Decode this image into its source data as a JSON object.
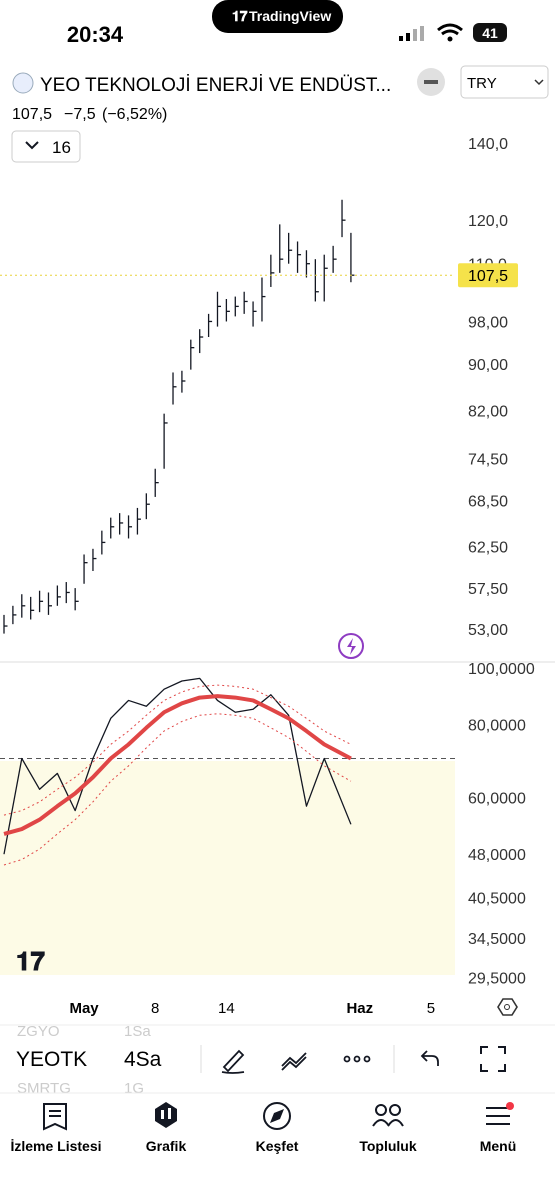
{
  "status_bar": {
    "time": "20:34",
    "app": "TradingView",
    "battery": "41"
  },
  "header": {
    "symbol_name": "YEO TEKNOLOJİ ENERJİ VE ENDÜST...",
    "currency": "TRY",
    "price": "107,5",
    "change": "−7,5",
    "change_pct": "(−6,52%)",
    "interval": "16"
  },
  "chart_data": [
    {
      "type": "ohlc",
      "yscale": "log",
      "color": "#131722",
      "ylim": [
        49.8,
        152.6
      ],
      "xlim": [
        -0.45,
        50.7
      ],
      "yticks": [
        {
          "value": 140,
          "label": "140,0"
        },
        {
          "value": 120,
          "label": "120,0"
        },
        {
          "value": 110,
          "label": "110,0"
        },
        {
          "value": 98,
          "label": "98,00"
        },
        {
          "value": 90,
          "label": "90,00"
        },
        {
          "value": 82,
          "label": "82,00"
        },
        {
          "value": 74.5,
          "label": "74,50"
        },
        {
          "value": 68.5,
          "label": "68,50"
        },
        {
          "value": 62.5,
          "label": "62,50"
        },
        {
          "value": 57.5,
          "label": "57,50"
        },
        {
          "value": 53,
          "label": "53,00"
        }
      ],
      "last_price": {
        "value": 107.5,
        "label": "107,5"
      },
      "xticks": [
        {
          "value": 9,
          "label": "May"
        },
        {
          "value": 17,
          "label": "8"
        },
        {
          "value": 25,
          "label": "14"
        },
        {
          "value": 40,
          "label": "Haz"
        },
        {
          "value": 48,
          "label": "5"
        }
      ],
      "high": [
        54.5,
        55.5,
        56.8,
        56.5,
        57.2,
        57,
        57.8,
        58.2,
        57.5,
        61.5,
        62.2,
        64.5,
        66.2,
        66.8,
        66.5,
        67.5,
        69.5,
        73,
        81.5,
        88.5,
        88.8,
        94.5,
        96.5,
        99.5,
        104,
        102.5,
        103,
        104,
        102,
        107,
        112,
        119,
        117,
        115,
        113,
        111,
        112,
        114,
        125,
        117
      ],
      "low": [
        52.5,
        53.5,
        54.2,
        54,
        54.8,
        54.5,
        55.5,
        55.8,
        55,
        58,
        59.5,
        61.5,
        63.5,
        64,
        63.5,
        64,
        66,
        69,
        73,
        83,
        85,
        89,
        92,
        95,
        97,
        98,
        99,
        99.5,
        97,
        98,
        105,
        108,
        110,
        108,
        107,
        102,
        102,
        108,
        116,
        106
      ],
      "close": [
        53.3,
        54.5,
        55.5,
        55,
        56,
        55.5,
        56.5,
        57,
        56,
        60.5,
        61,
        63,
        65,
        65.5,
        65,
        66,
        68,
        71,
        80,
        86,
        87,
        93,
        95,
        98,
        101,
        100,
        101,
        102,
        100,
        103,
        108,
        111,
        113,
        112,
        110,
        104,
        109,
        111,
        120,
        107.5
      ]
    },
    {
      "type": "line",
      "yscale": "log",
      "ylim": [
        28.1,
        102.4
      ],
      "xlim": [
        -0.45,
        50.7
      ],
      "yticks": [
        {
          "value": 100,
          "label": "100,0000"
        },
        {
          "value": 80,
          "label": "80,0000"
        },
        {
          "value": 60,
          "label": "60,0000"
        },
        {
          "value": 48,
          "label": "48,0000"
        },
        {
          "value": 40.5,
          "label": "40,5000"
        },
        {
          "value": 34.5,
          "label": "34,5000"
        },
        {
          "value": 29.5,
          "label": "29,5000"
        }
      ],
      "levels": [
        70,
        30
      ],
      "x": [
        0,
        2,
        4,
        6,
        8,
        10,
        12,
        14,
        16,
        18,
        20,
        22,
        24,
        26,
        28,
        30,
        32,
        34,
        36,
        39
      ],
      "series": [
        {
          "color": "#131722",
          "width": 1.3,
          "values": [
            48,
            70,
            62,
            66,
            57,
            70,
            82,
            88,
            86,
            92,
            95,
            96,
            88,
            84,
            85,
            90,
            83,
            58,
            70,
            54
          ]
        },
        {
          "color": "#e04646",
          "width": 4,
          "values": [
            52,
            53,
            55,
            58,
            61,
            65,
            70,
            74,
            79,
            84,
            87,
            89,
            89.5,
            89,
            88,
            85,
            82,
            78,
            74,
            70
          ]
        },
        {
          "color": "#e04646",
          "width": 1,
          "dash": "2,3",
          "values": [
            56,
            57,
            59,
            62,
            65,
            69,
            74,
            78,
            83,
            88,
            91,
            93,
            93.5,
            93,
            92,
            89,
            86,
            82,
            78,
            74
          ]
        },
        {
          "color": "#e04646",
          "width": 1,
          "dash": "2,3",
          "values": [
            46,
            47,
            49,
            52,
            55,
            59,
            64,
            68,
            73,
            78,
            81,
            83,
            83.5,
            83,
            82,
            79,
            76,
            72,
            68,
            64
          ]
        }
      ]
    }
  ],
  "toolbar": {
    "prev_symbol": "ZGYO",
    "prev_interval": "1Sa",
    "symbol": "YEOTK",
    "interval": "4Sa",
    "next_symbol": "SMRTG",
    "next_interval": "1G"
  },
  "nav": [
    "İzleme Listesi",
    "Grafik",
    "Keşfet",
    "Topluluk",
    "Menü"
  ]
}
